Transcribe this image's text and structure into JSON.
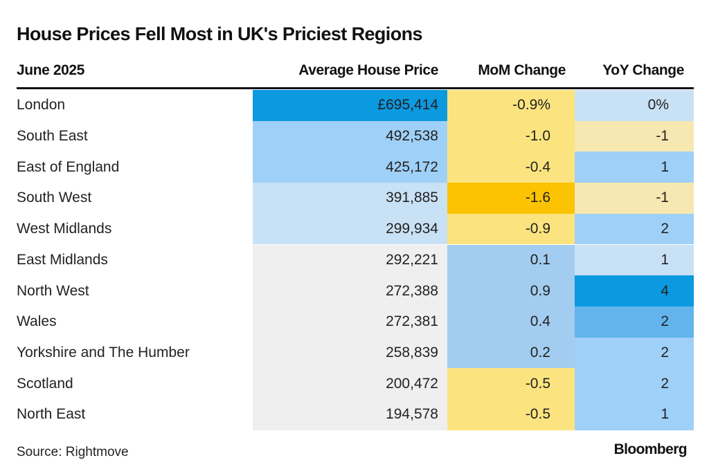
{
  "title": "House Prices Fell Most in UK's Priciest Regions",
  "source": "Source: Rightmove",
  "brand": "Bloomberg",
  "chart_data": {
    "type": "table",
    "title": "House Prices Fell Most in UK's Priciest Regions",
    "columns": [
      "June 2025",
      "Average House Price",
      "MoM Change",
      "YoY Change"
    ],
    "rows": [
      {
        "region": "London",
        "price": "£695,414",
        "mom": "-0.9%",
        "yoy": "0%",
        "colors": [
          "#0b99e0",
          "#fbe47f",
          "#c9e1f5"
        ]
      },
      {
        "region": "South East",
        "price": "492,538",
        "mom": "-1.0",
        "yoy": "-1",
        "colors": [
          "#9fd0f7",
          "#fbe47f",
          "#f7e7b0"
        ]
      },
      {
        "region": "East of England",
        "price": "425,172",
        "mom": "-0.4",
        "yoy": "1",
        "colors": [
          "#9fd0f7",
          "#fbe47f",
          "#9fd0f7"
        ]
      },
      {
        "region": "South West",
        "price": "391,885",
        "mom": "-1.6",
        "yoy": "-1",
        "colors": [
          "#c9e1f5",
          "#fcc303",
          "#f7e7b0"
        ]
      },
      {
        "region": "West Midlands",
        "price": "299,934",
        "mom": "-0.9",
        "yoy": "2",
        "colors": [
          "#c9e1f5",
          "#fbe47f",
          "#9fd0f7"
        ]
      },
      {
        "region": "East Midlands",
        "price": "292,221",
        "mom": "0.1",
        "yoy": "1",
        "colors": [
          "#efeff0",
          "#a2cdf0",
          "#c9e1f5"
        ]
      },
      {
        "region": "North West",
        "price": "272,388",
        "mom": "0.9",
        "yoy": "4",
        "colors": [
          "#efeff0",
          "#a2cdf0",
          "#0b99e0"
        ]
      },
      {
        "region": "Wales",
        "price": "272,381",
        "mom": "0.4",
        "yoy": "2",
        "colors": [
          "#efeff0",
          "#a2cdf0",
          "#63b4ec"
        ]
      },
      {
        "region": "Yorkshire and The Humber",
        "price": "258,839",
        "mom": "0.2",
        "yoy": "2",
        "colors": [
          "#efeff0",
          "#a2cdf0",
          "#9fd0f7"
        ]
      },
      {
        "region": "Scotland",
        "price": "200,472",
        "mom": "-0.5",
        "yoy": "2",
        "colors": [
          "#efeff0",
          "#fbe47f",
          "#9fd0f7"
        ]
      },
      {
        "region": "North East",
        "price": "194,578",
        "mom": "-0.5",
        "yoy": "1",
        "colors": [
          "#efeff0",
          "#fbe47f",
          "#9fd0f7"
        ]
      }
    ]
  }
}
